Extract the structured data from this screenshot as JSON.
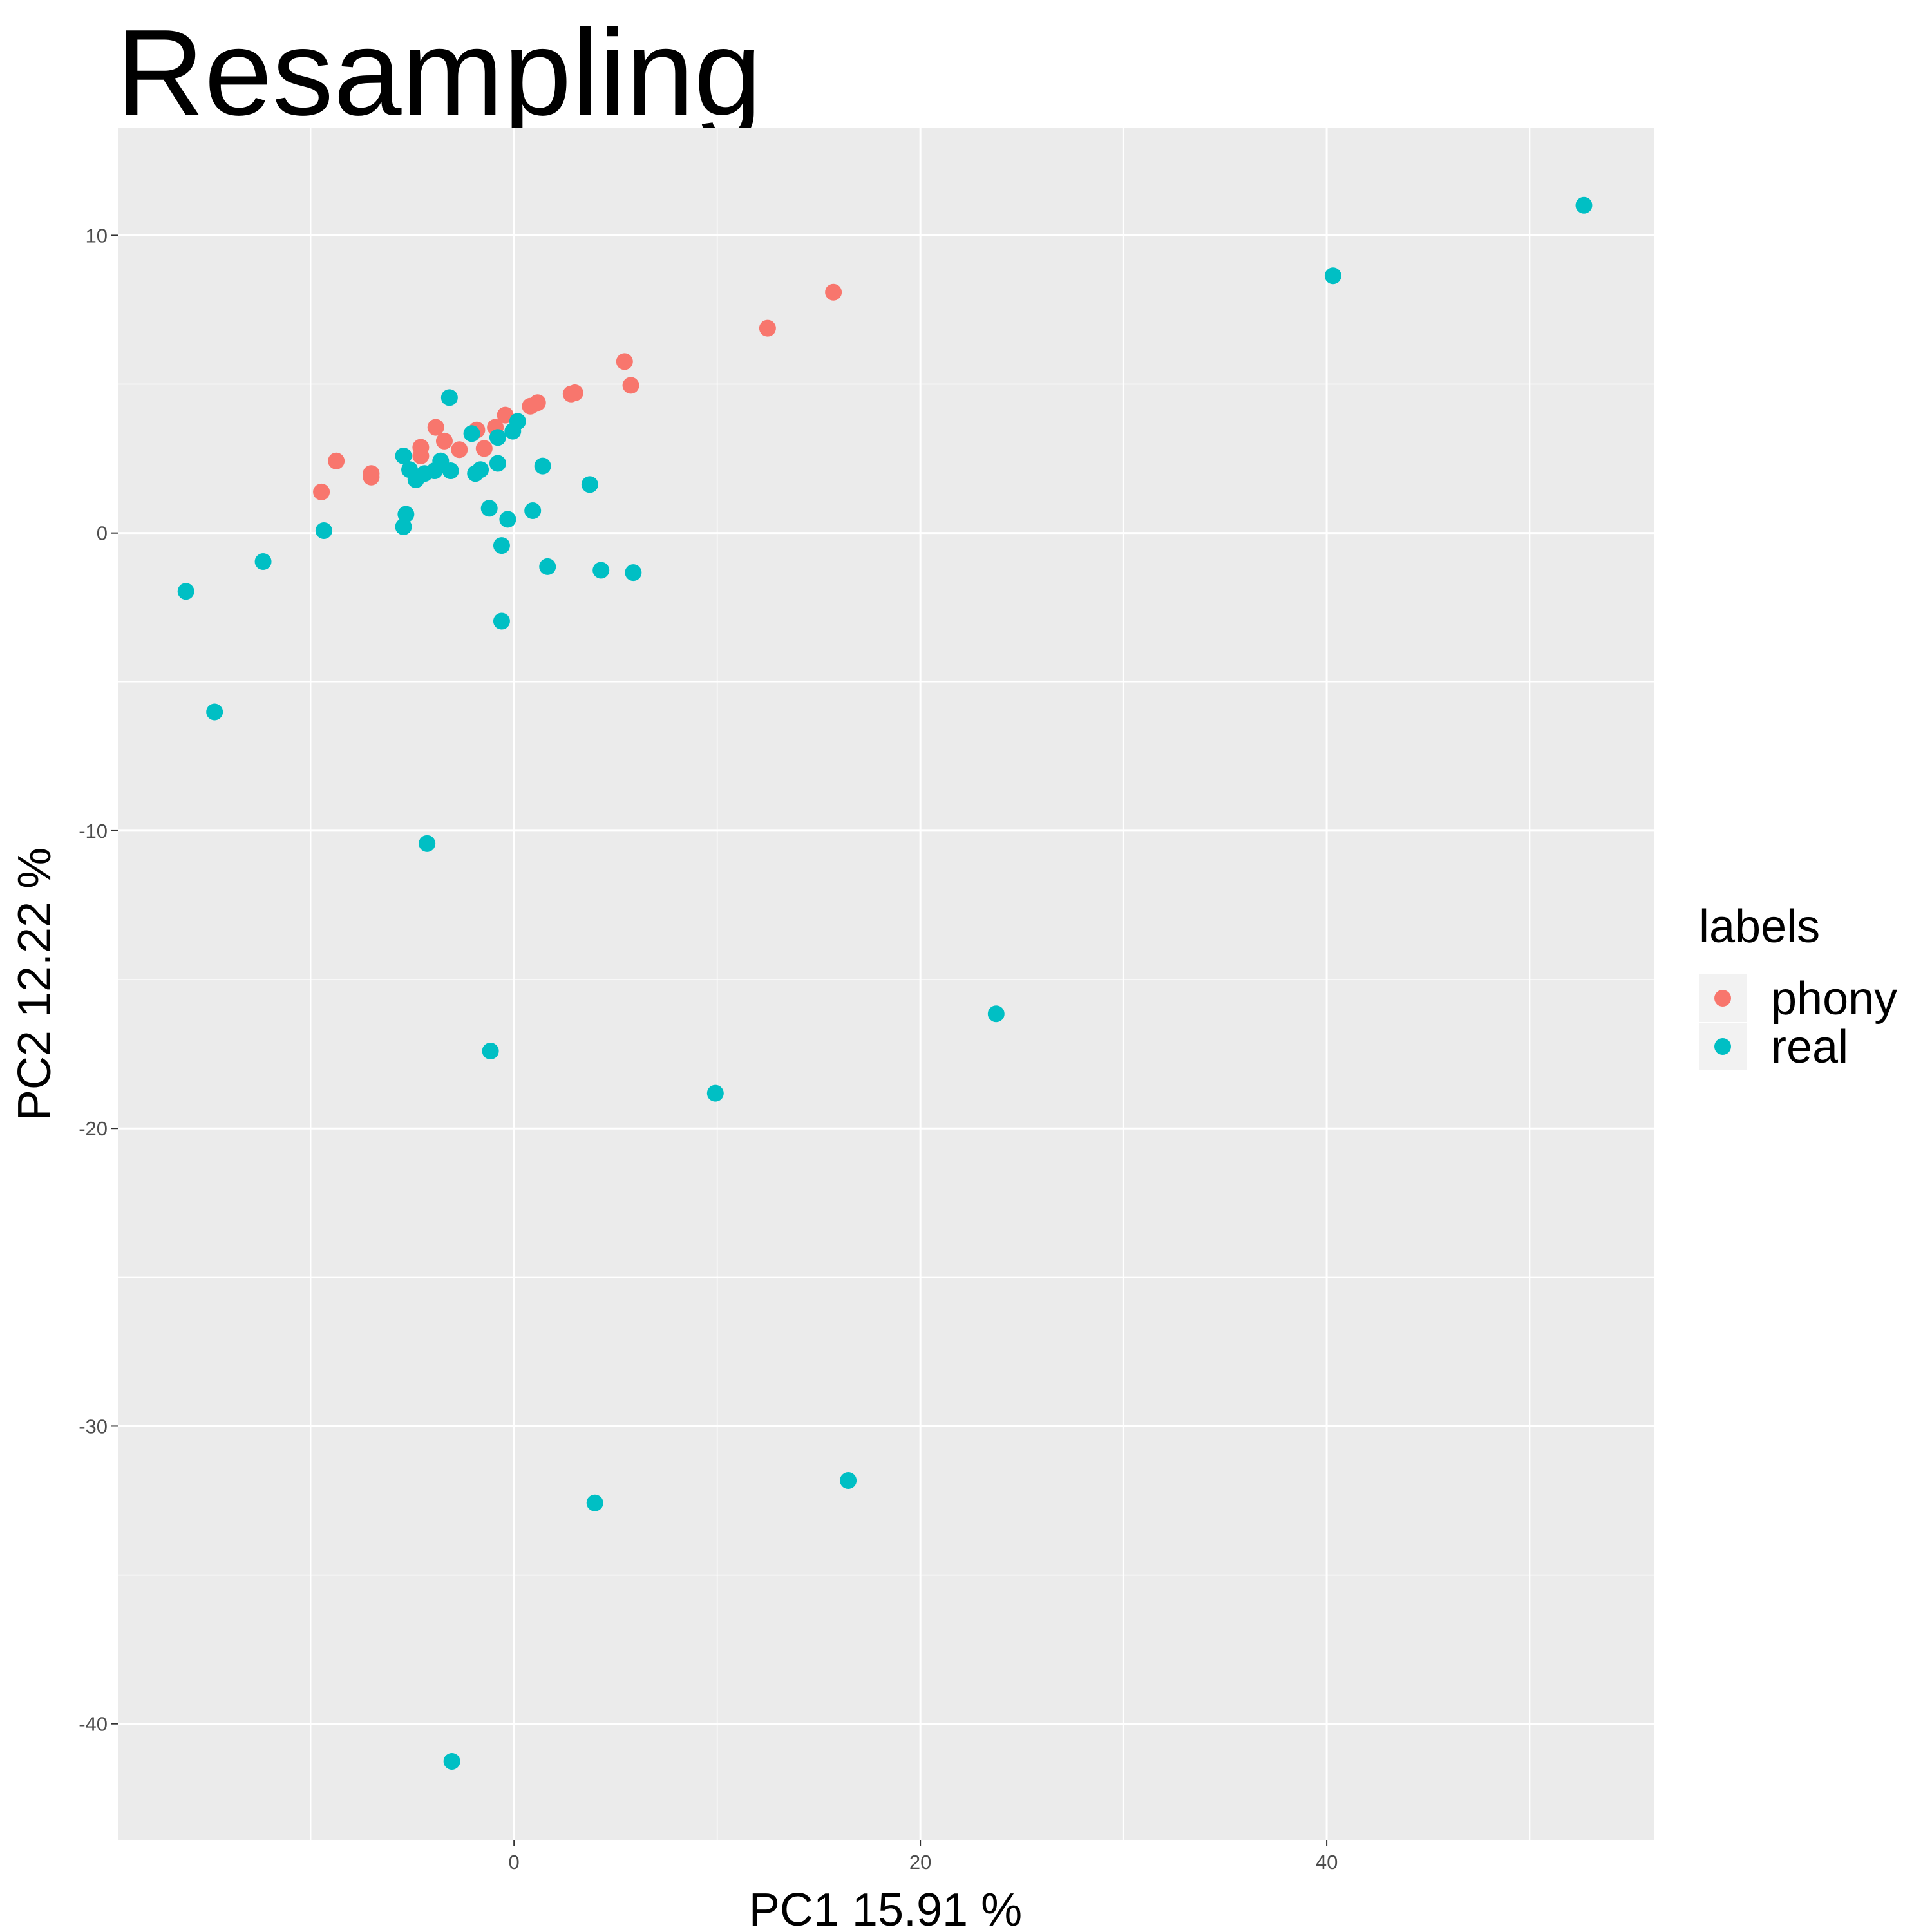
{
  "chart_data": {
    "type": "scatter",
    "title": "Resampling",
    "x_label": "PC1  15.91 %",
    "y_label": "PC2  12.22 %",
    "xlim": [
      -19.5,
      56.1
    ],
    "ylim": [
      -43.9,
      13.6
    ],
    "xticks": [
      0,
      20,
      40
    ],
    "yticks": [
      10,
      0,
      -10,
      -20,
      -30,
      -40
    ],
    "x_minor_grid": [
      -10,
      10,
      30,
      50
    ],
    "y_minor_grid": [
      5,
      -5,
      -15,
      -25,
      -35
    ],
    "grid": true,
    "legend_title": "labels",
    "legend_position": "right",
    "series": [
      {
        "name": "phony",
        "color": "#F8766D",
        "x": [
          -9.48,
          -8.75,
          -7.03,
          -7.03,
          -4.59,
          -4.59,
          -3.85,
          -3.43,
          -2.69,
          -1.83,
          -1.47,
          -0.92,
          -0.43,
          0.8,
          1.16,
          2.81,
          3.0,
          5.44,
          5.75,
          12.48,
          15.72
        ],
        "values": [
          1.38,
          2.42,
          2.0,
          1.88,
          2.59,
          2.88,
          3.55,
          3.09,
          2.8,
          3.46,
          2.84,
          3.55,
          3.96,
          4.26,
          4.38,
          4.67,
          4.71,
          5.76,
          4.96,
          6.88,
          8.09
        ]
      },
      {
        "name": "real",
        "color": "#00BFC4",
        "x": [
          -16.15,
          -14.74,
          -12.35,
          -9.36,
          -5.44,
          -5.32,
          -5.44,
          -5.14,
          -4.83,
          -4.4,
          -3.91,
          -3.61,
          -3.12,
          -3.18,
          -2.08,
          -1.9,
          -1.65,
          -1.22,
          -0.8,
          -0.8,
          -0.06,
          0.18,
          -0.61,
          -0.31,
          0.92,
          1.41,
          3.73,
          -0.61,
          1.65,
          4.28,
          5.87,
          -4.28,
          -1.16,
          9.91,
          23.73,
          3.98,
          16.45,
          -3.06,
          40.31,
          52.66
        ],
        "values": [
          -1.96,
          -6.01,
          -0.96,
          0.08,
          0.21,
          0.63,
          2.59,
          2.13,
          1.79,
          2.0,
          2.09,
          2.42,
          2.09,
          4.55,
          3.34,
          2.0,
          2.13,
          0.83,
          2.34,
          3.21,
          3.42,
          3.75,
          -0.42,
          0.46,
          0.75,
          2.25,
          1.63,
          -2.96,
          -1.13,
          -1.25,
          -1.33,
          -10.43,
          -17.4,
          -18.82,
          -16.15,
          -32.58,
          -31.83,
          -41.26,
          8.64,
          11.01
        ]
      }
    ]
  }
}
